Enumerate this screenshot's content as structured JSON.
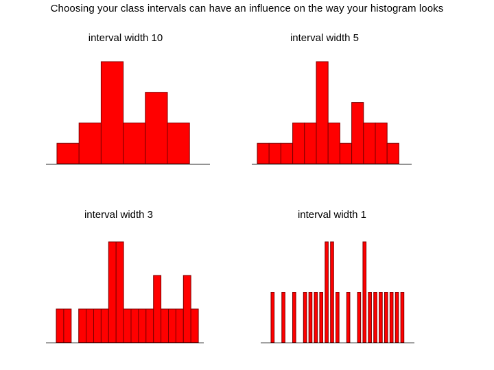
{
  "page": {
    "title": "Choosing your class intervals can have an influence on the way your histogram looks"
  },
  "colors": {
    "bar_fill": "#ff0000",
    "bar_stroke": "#7a0000",
    "axis": "#000000",
    "background": "#ffffff"
  },
  "chart_data": [
    {
      "type": "bar",
      "title": "interval width 10",
      "values": [
        1,
        2,
        5,
        2,
        3.5,
        2
      ],
      "ylim": [
        0,
        5
      ],
      "grid": false
    },
    {
      "type": "bar",
      "title": "interval width 5",
      "values": [
        1,
        1,
        1,
        2,
        2,
        5,
        2,
        1,
        3,
        2,
        2,
        1
      ],
      "ylim": [
        0,
        5
      ],
      "grid": false
    },
    {
      "type": "bar",
      "title": "interval width 3",
      "values": [
        1,
        1,
        0,
        1,
        1,
        1,
        1,
        3,
        3,
        1,
        1,
        1,
        1,
        2,
        1,
        1,
        1,
        2,
        1
      ],
      "ylim": [
        0,
        3
      ],
      "grid": false
    },
    {
      "type": "bar",
      "title": "interval width 1",
      "values": [
        1,
        0,
        1,
        0,
        1,
        0,
        1,
        1,
        1,
        1,
        2,
        2,
        1,
        0,
        1,
        0,
        1,
        2,
        1,
        1,
        1,
        1,
        1,
        1,
        1
      ],
      "ylim": [
        0,
        2
      ],
      "grid": false
    }
  ]
}
